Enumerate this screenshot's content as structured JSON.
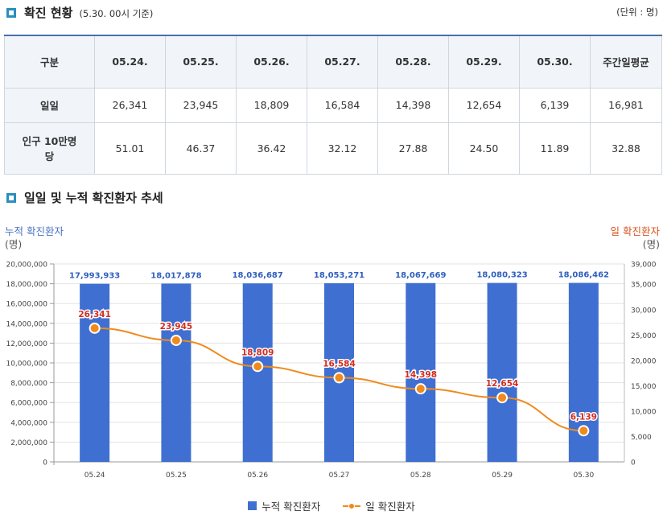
{
  "section1": {
    "title": "확진 현황",
    "subtitle": "(5.30. 00시 기준)",
    "unit": "(단위 : 명)"
  },
  "table": {
    "headers": [
      "구분",
      "05.24.",
      "05.25.",
      "05.26.",
      "05.27.",
      "05.28.",
      "05.29.",
      "05.30.",
      "주간일평균"
    ],
    "rows": [
      {
        "label": "일일",
        "values": [
          "26,341",
          "23,945",
          "18,809",
          "16,584",
          "14,398",
          "12,654",
          "6,139",
          "16,981"
        ]
      },
      {
        "label": "인구 10만명당",
        "values": [
          "51.01",
          "46.37",
          "36.42",
          "32.12",
          "27.88",
          "24.50",
          "11.89",
          "32.88"
        ]
      }
    ]
  },
  "section2": {
    "title": "일일 및 누적 확진환자 추세"
  },
  "colors": {
    "bar": "#3f6fd1",
    "line": "#f08a1c",
    "left_axis_title": "#4a72c4",
    "right_axis_title": "#d9531e",
    "bar_label": "#2f5fbf",
    "line_label": "#d62b1f",
    "header_border": "#4a6fa5",
    "icon": "#2a8fbd"
  },
  "chart_data": {
    "type": "bar+line",
    "categories": [
      "05.24",
      "05.25",
      "05.26",
      "05.27",
      "05.28",
      "05.29",
      "05.30"
    ],
    "series": [
      {
        "name": "누적 확진환자",
        "type": "bar",
        "axis": "left",
        "values": [
          17993933,
          18017878,
          18036687,
          18053271,
          18067669,
          18080323,
          18086462
        ],
        "labels": [
          "17,993,933",
          "18,017,878",
          "18,036,687",
          "18,053,271",
          "18,067,669",
          "18,080,323",
          "18,086,462"
        ]
      },
      {
        "name": "일 확진환자",
        "type": "line",
        "axis": "right",
        "values": [
          26341,
          23945,
          18809,
          16584,
          14398,
          12654,
          6139
        ],
        "labels": [
          "26,341",
          "23,945",
          "18,809",
          "16,584",
          "14,398",
          "12,654",
          "6,139"
        ]
      }
    ],
    "left_axis": {
      "title": "누적 확진환자",
      "unit": "(명)",
      "ylim": [
        0,
        20000000
      ],
      "ticks": [
        "20,000,000",
        "18,000,000",
        "16,000,000",
        "14,000,000",
        "12,000,000",
        "10,000,000",
        "8,000,000",
        "6,000,000",
        "4,000,000",
        "2,000,000",
        "0"
      ],
      "tick_values": [
        20000000,
        18000000,
        16000000,
        14000000,
        12000000,
        10000000,
        8000000,
        6000000,
        4000000,
        2000000,
        0
      ]
    },
    "right_axis": {
      "title": "일 확진환자",
      "unit": "(명)",
      "ylim": [
        0,
        39000
      ],
      "ticks": [
        "39,000",
        "35,000",
        "30,000",
        "25,000",
        "20,000",
        "15,000",
        "10,000",
        "5,000",
        "0"
      ],
      "tick_values": [
        39000,
        35000,
        30000,
        25000,
        20000,
        15000,
        10000,
        5000,
        0
      ]
    },
    "grid": true,
    "legend": {
      "placement": "bottom-center",
      "items": [
        "누적 확진환자",
        "일 확진환자"
      ]
    }
  }
}
